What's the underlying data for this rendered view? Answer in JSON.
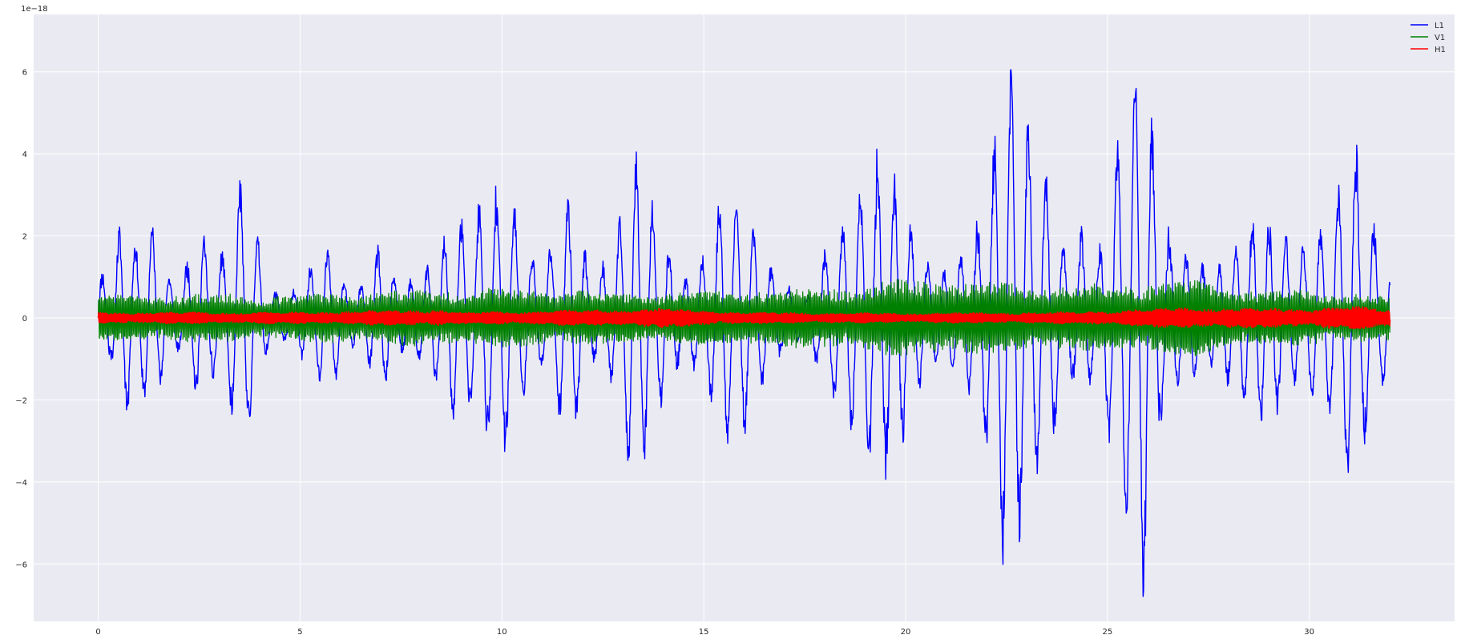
{
  "chart_data": {
    "type": "line",
    "title": "",
    "xlabel": "",
    "ylabel": "",
    "y_offset_label": "1e−18",
    "xlim": [
      -1.6,
      33.6
    ],
    "ylim": [
      -7.4,
      7.4
    ],
    "x_ticks": [
      0,
      5,
      10,
      15,
      20,
      25,
      30
    ],
    "y_ticks": [
      -6,
      -4,
      -2,
      0,
      2,
      4,
      6
    ],
    "x_tick_labels": [
      "0",
      "5",
      "10",
      "15",
      "20",
      "25",
      "30"
    ],
    "y_tick_labels": [
      "−6",
      "−4",
      "−2",
      "0",
      "2",
      "4",
      "6"
    ],
    "grid": true,
    "legend_position": "top-right",
    "x_range": [
      0,
      32
    ],
    "series": [
      {
        "name": "L1",
        "color": "#0000ff",
        "envelope": [
          [
            0,
            1.4
          ],
          [
            0.3,
            1.1
          ],
          [
            0.6,
            2.5
          ],
          [
            1.0,
            1.5
          ],
          [
            1.3,
            2.1
          ],
          [
            1.7,
            1.0
          ],
          [
            2.0,
            0.8
          ],
          [
            2.5,
            2.6
          ],
          [
            2.8,
            1.4
          ],
          [
            3.2,
            1.6
          ],
          [
            3.5,
            3.0
          ],
          [
            3.9,
            2.0
          ],
          [
            4.2,
            0.7
          ],
          [
            4.6,
            0.6
          ],
          [
            5.0,
            1.0
          ],
          [
            5.5,
            1.6
          ],
          [
            5.8,
            1.5
          ],
          [
            6.2,
            0.6
          ],
          [
            6.6,
            0.8
          ],
          [
            7.0,
            2.1
          ],
          [
            7.5,
            0.9
          ],
          [
            8.0,
            1.0
          ],
          [
            8.5,
            1.5
          ],
          [
            8.8,
            2.3
          ],
          [
            9.2,
            2.2
          ],
          [
            9.6,
            3.6
          ],
          [
            10.0,
            3.6
          ],
          [
            10.5,
            1.8
          ],
          [
            11.0,
            1.0
          ],
          [
            11.5,
            2.5
          ],
          [
            11.8,
            3.1
          ],
          [
            12.2,
            1.2
          ],
          [
            12.8,
            1.5
          ],
          [
            13.2,
            3.7
          ],
          [
            13.5,
            3.2
          ],
          [
            14.0,
            1.9
          ],
          [
            14.5,
            1.2
          ],
          [
            15.0,
            1.5
          ],
          [
            15.5,
            2.9
          ],
          [
            16.0,
            2.5
          ],
          [
            16.5,
            1.5
          ],
          [
            17.0,
            1.0
          ],
          [
            17.5,
            0.4
          ],
          [
            18.0,
            1.5
          ],
          [
            18.5,
            2.2
          ],
          [
            19.0,
            3.4
          ],
          [
            19.3,
            4.7
          ],
          [
            19.7,
            3.8
          ],
          [
            20.2,
            1.8
          ],
          [
            20.8,
            0.9
          ],
          [
            21.3,
            1.4
          ],
          [
            21.8,
            2.8
          ],
          [
            22.2,
            4.4
          ],
          [
            22.5,
            6.0
          ],
          [
            22.8,
            5.0
          ],
          [
            23.2,
            3.6
          ],
          [
            23.6,
            3.1
          ],
          [
            24.0,
            1.5
          ],
          [
            24.3,
            2.5
          ],
          [
            24.7,
            1.2
          ],
          [
            25.2,
            3.5
          ],
          [
            25.6,
            4.8
          ],
          [
            25.9,
            6.6
          ],
          [
            26.3,
            3.1
          ],
          [
            26.8,
            1.8
          ],
          [
            27.2,
            1.3
          ],
          [
            27.7,
            1.0
          ],
          [
            28.2,
            1.8
          ],
          [
            28.8,
            2.9
          ],
          [
            29.2,
            2.6
          ],
          [
            29.6,
            1.5
          ],
          [
            30.0,
            1.8
          ],
          [
            30.5,
            2.0
          ],
          [
            31.0,
            4.1
          ],
          [
            31.2,
            4.6
          ],
          [
            31.6,
            2.5
          ],
          [
            32.0,
            1.2
          ]
        ]
      },
      {
        "name": "V1",
        "color": "#008000",
        "envelope": [
          [
            0,
            0.5
          ],
          [
            2,
            0.5
          ],
          [
            4,
            0.45
          ],
          [
            6,
            0.5
          ],
          [
            8,
            0.55
          ],
          [
            10,
            0.6
          ],
          [
            12,
            0.55
          ],
          [
            14,
            0.55
          ],
          [
            16,
            0.6
          ],
          [
            18,
            0.6
          ],
          [
            20,
            0.75
          ],
          [
            22,
            0.7
          ],
          [
            24,
            0.65
          ],
          [
            26,
            0.7
          ],
          [
            27.2,
            0.85
          ],
          [
            28,
            0.65
          ],
          [
            30,
            0.55
          ],
          [
            32,
            0.45
          ]
        ]
      },
      {
        "name": "H1",
        "color": "#ff0000",
        "envelope": [
          [
            0,
            0.12
          ],
          [
            5,
            0.12
          ],
          [
            8.5,
            0.18
          ],
          [
            9,
            0.12
          ],
          [
            14,
            0.2
          ],
          [
            16,
            0.12
          ],
          [
            20,
            0.1
          ],
          [
            24,
            0.12
          ],
          [
            27,
            0.22
          ],
          [
            30,
            0.2
          ],
          [
            31,
            0.25
          ],
          [
            32,
            0.2
          ]
        ]
      }
    ]
  }
}
